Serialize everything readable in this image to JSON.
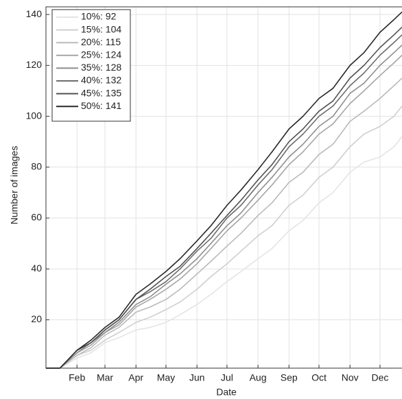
{
  "chart_data": {
    "type": "line",
    "x_label": "Date",
    "y_label": "Number of images",
    "x": [
      1,
      15,
      32,
      46,
      60,
      74,
      91,
      105,
      121,
      135,
      152,
      166,
      182,
      196,
      213,
      227,
      244,
      258,
      274,
      288,
      305,
      319,
      335,
      349,
      357
    ],
    "xlim": [
      1,
      357
    ],
    "xticks": [
      {
        "value": 32,
        "label": "Feb"
      },
      {
        "value": 60,
        "label": "Mar"
      },
      {
        "value": 91,
        "label": "Apr"
      },
      {
        "value": 121,
        "label": "May"
      },
      {
        "value": 152,
        "label": "Jun"
      },
      {
        "value": 182,
        "label": "Jul"
      },
      {
        "value": 213,
        "label": "Aug"
      },
      {
        "value": 244,
        "label": "Sep"
      },
      {
        "value": 274,
        "label": "Oct"
      },
      {
        "value": 305,
        "label": "Nov"
      },
      {
        "value": 335,
        "label": "Dec"
      }
    ],
    "ylim": [
      1,
      143
    ],
    "yticks": [
      20,
      40,
      60,
      80,
      100,
      120,
      140
    ],
    "grid": true,
    "legend": "upper left",
    "series": [
      {
        "name": "10%: 92",
        "color": "#e4e4e4",
        "values": [
          1,
          1,
          5,
          7,
          11,
          13,
          16,
          17,
          19,
          22,
          26,
          30,
          35,
          39,
          44,
          48,
          55,
          59,
          66,
          70,
          78,
          82,
          84,
          88,
          92
        ]
      },
      {
        "name": "15%: 104",
        "color": "#cfcfcf",
        "values": [
          1,
          1,
          6,
          8,
          12,
          15,
          19,
          21,
          24,
          27,
          32,
          37,
          42,
          47,
          53,
          57,
          65,
          69,
          76,
          80,
          88,
          93,
          96,
          100,
          104
        ]
      },
      {
        "name": "20%: 115",
        "color": "#bababa",
        "values": [
          1,
          1,
          6,
          9,
          14,
          17,
          23,
          25,
          28,
          32,
          38,
          43,
          49,
          54,
          61,
          66,
          74,
          78,
          85,
          89,
          98,
          102,
          107,
          112,
          115
        ]
      },
      {
        "name": "25%: 124",
        "color": "#a5a5a5",
        "values": [
          1,
          1,
          7,
          10,
          15,
          18,
          25,
          28,
          32,
          36,
          42,
          48,
          55,
          60,
          67,
          73,
          81,
          86,
          93,
          97,
          105,
          110,
          116,
          121,
          124
        ]
      },
      {
        "name": "35%: 128",
        "color": "#8e8e8e",
        "values": [
          1,
          1,
          7,
          11,
          15,
          19,
          26,
          29,
          34,
          38,
          44,
          50,
          57,
          62,
          70,
          76,
          84,
          89,
          96,
          100,
          109,
          113,
          120,
          125,
          128
        ]
      },
      {
        "name": "40%: 132",
        "color": "#6c6c6c",
        "values": [
          1,
          1,
          8,
          11,
          16,
          20,
          28,
          31,
          35,
          40,
          47,
          52,
          60,
          65,
          73,
          79,
          88,
          93,
          100,
          104,
          112,
          117,
          124,
          129,
          132
        ]
      },
      {
        "name": "45%: 135",
        "color": "#515151",
        "values": [
          1,
          1,
          8,
          11,
          16,
          20,
          28,
          32,
          37,
          41,
          48,
          54,
          61,
          67,
          75,
          81,
          90,
          95,
          102,
          106,
          115,
          120,
          127,
          132,
          135
        ]
      },
      {
        "name": "50%: 141",
        "color": "#262626",
        "values": [
          1,
          1,
          8,
          12,
          17,
          21,
          30,
          34,
          39,
          44,
          51,
          57,
          65,
          71,
          79,
          86,
          95,
          100,
          107,
          111,
          120,
          125,
          133,
          138,
          141
        ]
      }
    ]
  }
}
